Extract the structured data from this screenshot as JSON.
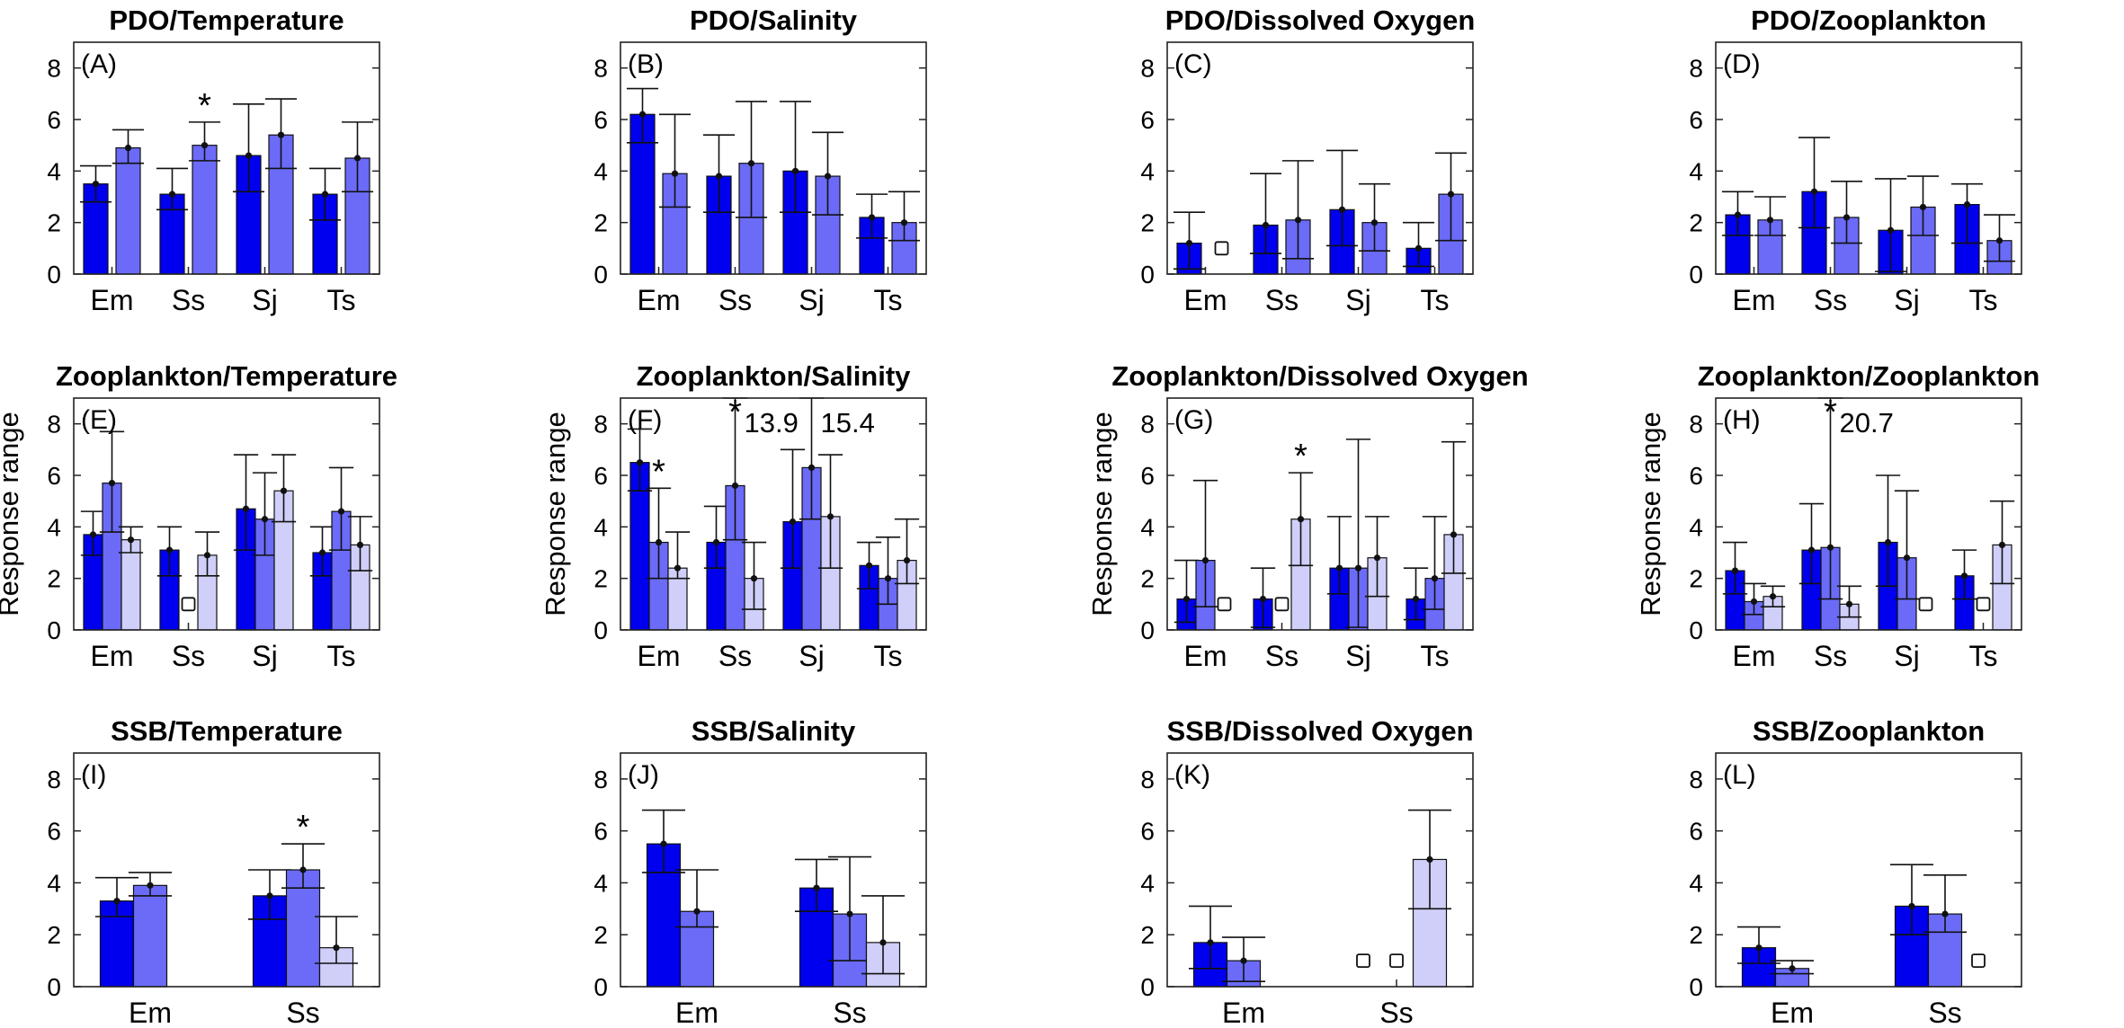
{
  "figure": {
    "y_axis_label": "Response range"
  },
  "colors": [
    "#0000ee",
    "#6b6bf8",
    "#cfcff9"
  ],
  "chart_data": [
    {
      "id": "A",
      "type": "bar",
      "panel_label": "(A)",
      "title": "PDO/Temperature",
      "categories": [
        "Em",
        "Ss",
        "Sj",
        "Ts"
      ],
      "ylim": [
        0,
        9
      ],
      "yticks": [
        0,
        2,
        4,
        6,
        8
      ],
      "series": [
        {
          "name": "series 1",
          "values": [
            3.5,
            3.1,
            4.6,
            3.1
          ],
          "lower": [
            2.8,
            2.5,
            3.2,
            2.1
          ],
          "upper": [
            4.2,
            4.1,
            6.6,
            4.1
          ]
        },
        {
          "name": "series 2",
          "values": [
            4.9,
            5.0,
            5.4,
            4.5
          ],
          "lower": [
            4.3,
            4.4,
            4.1,
            3.2
          ],
          "upper": [
            5.6,
            5.9,
            6.8,
            5.9
          ]
        }
      ],
      "markers": [],
      "stars": [
        {
          "category": 1,
          "series": 1
        }
      ],
      "annotations": []
    },
    {
      "id": "B",
      "type": "bar",
      "panel_label": "(B)",
      "title": "PDO/Salinity",
      "categories": [
        "Em",
        "Ss",
        "Sj",
        "Ts"
      ],
      "ylim": [
        0,
        9
      ],
      "yticks": [
        0,
        2,
        4,
        6,
        8
      ],
      "series": [
        {
          "name": "series 1",
          "values": [
            6.2,
            3.8,
            4.0,
            2.2
          ],
          "lower": [
            5.1,
            2.4,
            2.4,
            1.4
          ],
          "upper": [
            7.2,
            5.4,
            6.7,
            3.1
          ]
        },
        {
          "name": "series 2",
          "values": [
            3.9,
            4.3,
            3.8,
            2.0
          ],
          "lower": [
            2.6,
            2.2,
            2.3,
            1.3
          ],
          "upper": [
            6.2,
            6.7,
            5.5,
            3.2
          ]
        }
      ],
      "markers": [],
      "stars": [],
      "annotations": []
    },
    {
      "id": "C",
      "type": "bar",
      "panel_label": "(C)",
      "title": "PDO/Dissolved Oxygen",
      "categories": [
        "Em",
        "Ss",
        "Sj",
        "Ts"
      ],
      "ylim": [
        0,
        9
      ],
      "yticks": [
        0,
        2,
        4,
        6,
        8
      ],
      "series": [
        {
          "name": "series 1",
          "values": [
            1.2,
            1.9,
            2.5,
            1.0
          ],
          "lower": [
            0.2,
            0.8,
            1.1,
            0.3
          ],
          "upper": [
            2.4,
            3.9,
            4.8,
            2.0
          ]
        },
        {
          "name": "series 2",
          "values": [
            null,
            2.1,
            2.0,
            3.1
          ],
          "lower": [
            null,
            0.6,
            0.9,
            1.3
          ],
          "upper": [
            null,
            4.4,
            3.5,
            4.7
          ]
        }
      ],
      "markers": [
        {
          "category": 0,
          "series": 1,
          "value": 1.0
        }
      ],
      "stars": [],
      "annotations": []
    },
    {
      "id": "D",
      "type": "bar",
      "panel_label": "(D)",
      "title": "PDO/Zooplankton",
      "categories": [
        "Em",
        "Ss",
        "Sj",
        "Ts"
      ],
      "ylim": [
        0,
        9
      ],
      "yticks": [
        0,
        2,
        4,
        6,
        8
      ],
      "series": [
        {
          "name": "series 1",
          "values": [
            2.3,
            3.2,
            1.7,
            2.7
          ],
          "lower": [
            1.5,
            1.8,
            0.1,
            1.2
          ],
          "upper": [
            3.2,
            5.3,
            3.7,
            3.5
          ]
        },
        {
          "name": "series 2",
          "values": [
            2.1,
            2.2,
            2.6,
            1.3
          ],
          "lower": [
            1.5,
            1.2,
            1.5,
            0.5
          ],
          "upper": [
            3.0,
            3.6,
            3.8,
            2.3
          ]
        }
      ],
      "markers": [],
      "stars": [],
      "annotations": []
    },
    {
      "id": "E",
      "type": "bar",
      "panel_label": "(E)",
      "title": "Zooplankton/Temperature",
      "categories": [
        "Em",
        "Ss",
        "Sj",
        "Ts"
      ],
      "ylim": [
        0,
        9
      ],
      "yticks": [
        0,
        2,
        4,
        6,
        8
      ],
      "series": [
        {
          "name": "series 1",
          "values": [
            3.7,
            3.1,
            4.7,
            3.0
          ],
          "lower": [
            2.9,
            2.1,
            3.1,
            2.1
          ],
          "upper": [
            4.6,
            4.0,
            6.8,
            4.0
          ]
        },
        {
          "name": "series 2",
          "values": [
            5.7,
            null,
            4.3,
            4.6
          ],
          "lower": [
            3.8,
            null,
            2.9,
            3.1
          ],
          "upper": [
            7.7,
            null,
            6.1,
            6.3
          ]
        },
        {
          "name": "series 3",
          "values": [
            3.5,
            2.9,
            5.4,
            3.3
          ],
          "lower": [
            3.0,
            2.1,
            4.2,
            2.3
          ],
          "upper": [
            4.0,
            3.8,
            6.8,
            4.4
          ]
        }
      ],
      "markers": [
        {
          "category": 1,
          "series": 1,
          "value": 1.0
        }
      ],
      "stars": [],
      "annotations": []
    },
    {
      "id": "F",
      "type": "bar",
      "panel_label": "(F)",
      "title": "Zooplankton/Salinity",
      "categories": [
        "Em",
        "Ss",
        "Sj",
        "Ts"
      ],
      "ylim": [
        0,
        9
      ],
      "yticks": [
        0,
        2,
        4,
        6,
        8
      ],
      "series": [
        {
          "name": "series 1",
          "values": [
            6.5,
            3.4,
            4.2,
            2.5
          ],
          "lower": [
            5.4,
            2.4,
            2.4,
            1.6
          ],
          "upper": [
            7.8,
            4.8,
            7.0,
            3.4
          ]
        },
        {
          "name": "series 2",
          "values": [
            3.4,
            5.6,
            6.3,
            2.0
          ],
          "lower": [
            2.0,
            3.5,
            4.3,
            1.0
          ],
          "upper": [
            5.5,
            13.9,
            15.4,
            3.6
          ]
        },
        {
          "name": "series 3",
          "values": [
            2.4,
            2.0,
            4.4,
            2.7
          ],
          "lower": [
            2.0,
            0.8,
            2.4,
            1.8
          ],
          "upper": [
            3.8,
            3.4,
            6.8,
            4.3
          ]
        }
      ],
      "markers": [],
      "stars": [
        {
          "category": 0,
          "series": 1
        },
        {
          "category": 1,
          "series": 1
        }
      ],
      "annotations": [
        {
          "text": "13.9",
          "category": 1,
          "series": 1
        },
        {
          "text": "15.4",
          "category": 2,
          "series": 1
        }
      ]
    },
    {
      "id": "G",
      "type": "bar",
      "panel_label": "(G)",
      "title": "Zooplankton/Dissolved Oxygen",
      "categories": [
        "Em",
        "Ss",
        "Sj",
        "Ts"
      ],
      "ylim": [
        0,
        9
      ],
      "yticks": [
        0,
        2,
        4,
        6,
        8
      ],
      "series": [
        {
          "name": "series 1",
          "values": [
            1.2,
            1.2,
            2.4,
            1.2
          ],
          "lower": [
            0.3,
            0.1,
            1.4,
            0.4
          ],
          "upper": [
            2.7,
            2.4,
            4.4,
            2.4
          ]
        },
        {
          "name": "series 2",
          "values": [
            2.7,
            null,
            2.4,
            2.0
          ],
          "lower": [
            0.9,
            null,
            0.1,
            0.8
          ],
          "upper": [
            5.8,
            null,
            7.4,
            4.4
          ]
        },
        {
          "name": "series 3",
          "values": [
            null,
            4.3,
            2.8,
            3.7
          ],
          "lower": [
            null,
            2.5,
            1.3,
            2.2
          ],
          "upper": [
            null,
            6.1,
            4.4,
            7.3
          ]
        }
      ],
      "markers": [
        {
          "category": 0,
          "series": 2,
          "value": 1.0
        },
        {
          "category": 1,
          "series": 1,
          "value": 1.0
        }
      ],
      "stars": [
        {
          "category": 1,
          "series": 2
        }
      ],
      "annotations": []
    },
    {
      "id": "H",
      "type": "bar",
      "panel_label": "(H)",
      "title": "Zooplankton/Zooplankton",
      "categories": [
        "Em",
        "Ss",
        "Sj",
        "Ts"
      ],
      "ylim": [
        0,
        9
      ],
      "yticks": [
        0,
        2,
        4,
        6,
        8
      ],
      "series": [
        {
          "name": "series 1",
          "values": [
            2.3,
            3.1,
            3.4,
            2.1
          ],
          "lower": [
            1.4,
            1.8,
            1.7,
            1.2
          ],
          "upper": [
            3.4,
            4.9,
            6.0,
            3.1
          ]
        },
        {
          "name": "series 2",
          "values": [
            1.1,
            3.2,
            2.8,
            null
          ],
          "lower": [
            0.6,
            1.2,
            1.2,
            null
          ],
          "upper": [
            1.8,
            20.7,
            5.4,
            null
          ]
        },
        {
          "name": "series 3",
          "values": [
            1.3,
            1.0,
            null,
            3.3
          ],
          "lower": [
            0.9,
            0.5,
            null,
            1.8
          ],
          "upper": [
            1.7,
            1.7,
            null,
            5.0
          ]
        }
      ],
      "markers": [
        {
          "category": 2,
          "series": 2,
          "value": 1.0
        },
        {
          "category": 3,
          "series": 1,
          "value": 1.0
        }
      ],
      "stars": [
        {
          "category": 1,
          "series": 1
        }
      ],
      "annotations": [
        {
          "text": "20.7",
          "category": 1,
          "series": 1
        }
      ]
    },
    {
      "id": "I",
      "type": "bar",
      "panel_label": "(I)",
      "title": "SSB/Temperature",
      "categories": [
        "Em",
        "Ss"
      ],
      "ylim": [
        0,
        9
      ],
      "yticks": [
        0,
        2,
        4,
        6,
        8
      ],
      "series": [
        {
          "name": "series 1",
          "values": [
            3.3,
            3.5
          ],
          "lower": [
            2.7,
            2.6
          ],
          "upper": [
            4.2,
            4.5
          ]
        },
        {
          "name": "series 2",
          "values": [
            3.9,
            4.5
          ],
          "lower": [
            3.5,
            3.8
          ],
          "upper": [
            4.4,
            5.5
          ]
        },
        {
          "name": "series 3",
          "values": [
            null,
            1.5
          ],
          "lower": [
            null,
            0.9
          ],
          "upper": [
            null,
            2.7
          ]
        }
      ],
      "markers": [],
      "stars": [
        {
          "category": 1,
          "series": 1
        }
      ],
      "annotations": []
    },
    {
      "id": "J",
      "type": "bar",
      "panel_label": "(J)",
      "title": "SSB/Salinity",
      "categories": [
        "Em",
        "Ss"
      ],
      "ylim": [
        0,
        9
      ],
      "yticks": [
        0,
        2,
        4,
        6,
        8
      ],
      "series": [
        {
          "name": "series 1",
          "values": [
            5.5,
            3.8
          ],
          "lower": [
            4.4,
            2.9
          ],
          "upper": [
            6.8,
            4.9
          ]
        },
        {
          "name": "series 2",
          "values": [
            2.9,
            2.8
          ],
          "lower": [
            2.3,
            1.0
          ],
          "upper": [
            4.5,
            5.0
          ]
        },
        {
          "name": "series 3",
          "values": [
            null,
            1.7
          ],
          "lower": [
            null,
            0.5
          ],
          "upper": [
            null,
            3.5
          ]
        }
      ],
      "markers": [],
      "stars": [],
      "annotations": []
    },
    {
      "id": "K",
      "type": "bar",
      "panel_label": "(K)",
      "title": "SSB/Dissolved Oxygen",
      "categories": [
        "Em",
        "Ss"
      ],
      "ylim": [
        0,
        9
      ],
      "yticks": [
        0,
        2,
        4,
        6,
        8
      ],
      "series": [
        {
          "name": "series 1",
          "values": [
            1.7,
            null
          ],
          "lower": [
            0.7,
            null
          ],
          "upper": [
            3.1,
            null
          ]
        },
        {
          "name": "series 2",
          "values": [
            1.0,
            null
          ],
          "lower": [
            0.2,
            null
          ],
          "upper": [
            1.9,
            null
          ]
        },
        {
          "name": "series 3",
          "values": [
            null,
            4.9
          ],
          "lower": [
            null,
            3.0
          ],
          "upper": [
            null,
            6.8
          ]
        }
      ],
      "markers": [
        {
          "category": 1,
          "series": 0,
          "value": 1.0
        },
        {
          "category": 1,
          "series": 1,
          "value": 1.0
        }
      ],
      "stars": [],
      "annotations": []
    },
    {
      "id": "L",
      "type": "bar",
      "panel_label": "(L)",
      "title": "SSB/Zooplankton",
      "categories": [
        "Em",
        "Ss"
      ],
      "ylim": [
        0,
        9
      ],
      "yticks": [
        0,
        2,
        4,
        6,
        8
      ],
      "series": [
        {
          "name": "series 1",
          "values": [
            1.5,
            3.1
          ],
          "lower": [
            0.9,
            2.0
          ],
          "upper": [
            2.3,
            4.7
          ]
        },
        {
          "name": "series 2",
          "values": [
            0.7,
            2.8
          ],
          "lower": [
            0.5,
            2.1
          ],
          "upper": [
            1.0,
            4.3
          ]
        },
        {
          "name": "series 3",
          "values": [
            null,
            null
          ],
          "lower": [
            null,
            null
          ],
          "upper": [
            null,
            null
          ]
        }
      ],
      "markers": [
        {
          "category": 1,
          "series": 2,
          "value": 1.0
        }
      ],
      "stars": [],
      "annotations": []
    }
  ]
}
